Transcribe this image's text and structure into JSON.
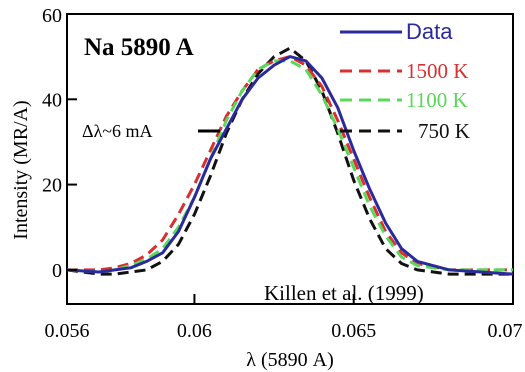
{
  "chart_data": {
    "type": "line",
    "title": "Na 5890 A",
    "xlabel": "λ (5890 A)",
    "ylabel": "Intensity (MR/A)",
    "xlim": [
      0.056,
      0.07
    ],
    "ylim": [
      -8,
      60
    ],
    "x_ticks": [
      "0.056",
      "0.06",
      "0.065",
      "0.07"
    ],
    "x_tick_values": [
      0.056,
      0.06,
      0.065,
      0.07
    ],
    "y_ticks": [
      "0",
      "20",
      "40",
      "60"
    ],
    "y_tick_values": [
      0,
      20,
      40,
      60
    ],
    "grid": false,
    "legend_position": "top-right",
    "annotations": {
      "width": "Δλ~6 mA",
      "citation": "Killen et al. (1999)"
    },
    "series": [
      {
        "name": "Data",
        "color": "#2a2a9c",
        "style": "solid",
        "x": [
          0.056,
          0.057,
          0.0575,
          0.058,
          0.0585,
          0.059,
          0.0595,
          0.06,
          0.0605,
          0.061,
          0.0615,
          0.062,
          0.0625,
          0.063,
          0.0635,
          0.064,
          0.0645,
          0.065,
          0.0655,
          0.066,
          0.0665,
          0.067,
          0.068,
          0.069,
          0.07
        ],
        "y": [
          0,
          -0.5,
          0,
          0.5,
          2,
          4,
          9,
          17,
          26,
          33,
          40,
          45,
          48,
          50,
          49,
          45,
          38,
          28,
          19,
          11,
          5,
          2,
          0,
          -0.5,
          -1
        ]
      },
      {
        "name": "1500 K",
        "color": "#d83030",
        "style": "dashed",
        "x": [
          0.056,
          0.057,
          0.0575,
          0.058,
          0.0585,
          0.059,
          0.0595,
          0.06,
          0.0605,
          0.061,
          0.0615,
          0.062,
          0.0625,
          0.063,
          0.0635,
          0.064,
          0.0645,
          0.065,
          0.0655,
          0.066,
          0.0665,
          0.067,
          0.068,
          0.069,
          0.07
        ],
        "y": [
          0,
          0,
          0.5,
          1.5,
          3.5,
          7,
          13,
          20,
          28,
          36,
          42,
          47,
          49,
          50,
          48,
          43,
          35,
          26,
          17,
          9,
          4,
          1.5,
          0,
          0,
          0
        ]
      },
      {
        "name": "1100 K",
        "color": "#5ad85a",
        "style": "dashed",
        "x": [
          0.056,
          0.057,
          0.0575,
          0.058,
          0.0585,
          0.059,
          0.0595,
          0.06,
          0.0605,
          0.061,
          0.0615,
          0.062,
          0.0625,
          0.063,
          0.0635,
          0.064,
          0.0645,
          0.065,
          0.0655,
          0.066,
          0.0665,
          0.067,
          0.068,
          0.069,
          0.07
        ],
        "y": [
          0,
          -0.5,
          0,
          1,
          2.5,
          5,
          10,
          17,
          26,
          35,
          42,
          47,
          49,
          49,
          47,
          41,
          33,
          24,
          15,
          8,
          3,
          1,
          0,
          0,
          0
        ]
      },
      {
        "name": "750 K",
        "color": "#111111",
        "style": "dashed",
        "x": [
          0.056,
          0.057,
          0.0575,
          0.058,
          0.0585,
          0.059,
          0.0595,
          0.06,
          0.0605,
          0.061,
          0.0615,
          0.062,
          0.0625,
          0.063,
          0.0635,
          0.064,
          0.0645,
          0.065,
          0.0655,
          0.066,
          0.0665,
          0.067,
          0.068,
          0.069,
          0.07
        ],
        "y": [
          0,
          -1,
          -1,
          -0.5,
          0,
          2,
          6,
          13,
          22,
          32,
          40,
          46,
          50,
          52,
          49,
          42,
          32,
          21,
          12,
          5,
          1.5,
          0,
          -1,
          -1,
          -1
        ]
      }
    ]
  }
}
